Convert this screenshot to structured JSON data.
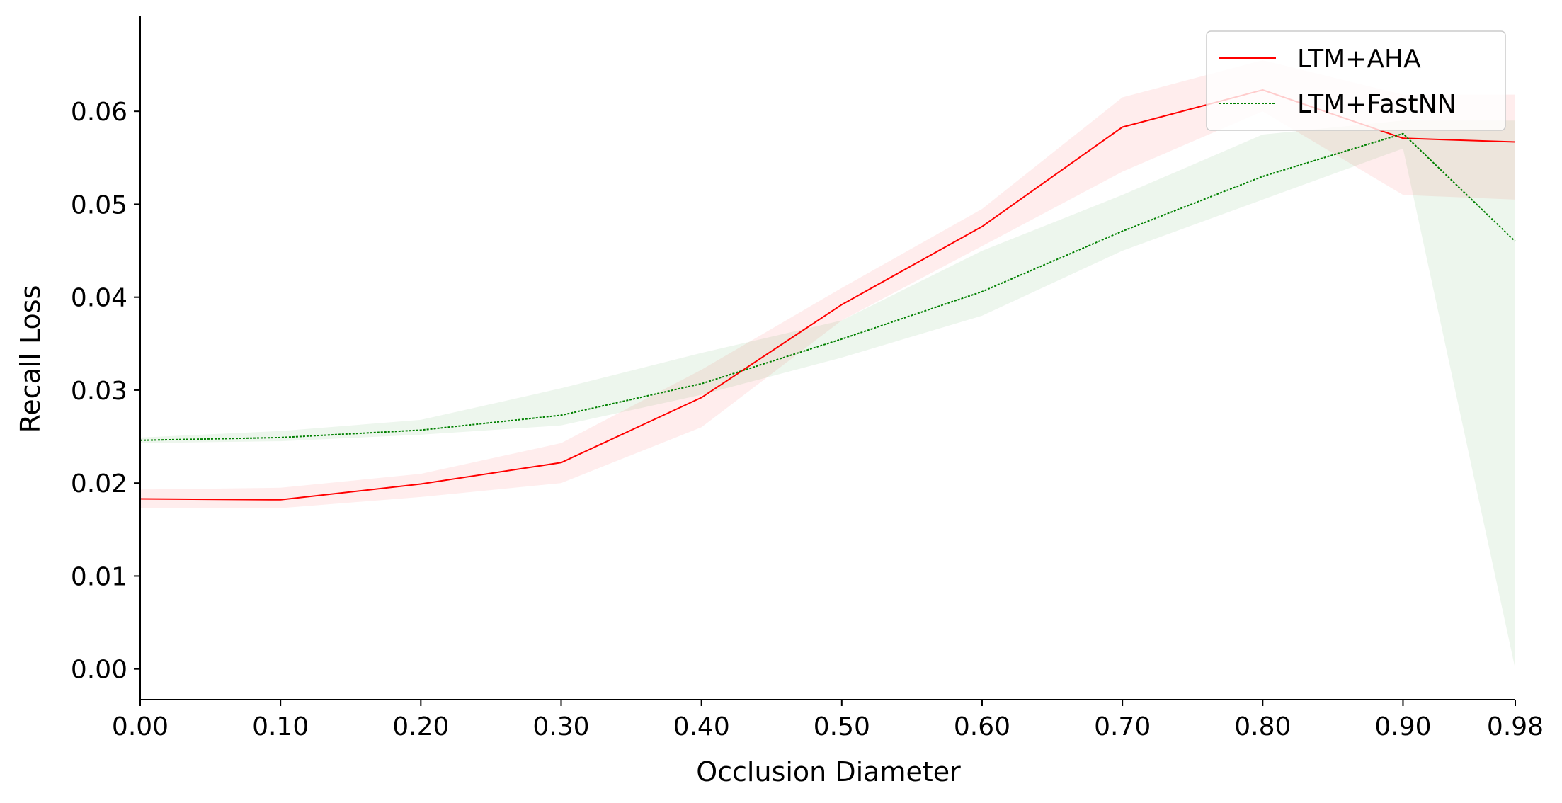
{
  "chart_data": {
    "type": "line",
    "title": "",
    "xlabel": "Occlusion Diameter",
    "ylabel": "Recall Loss",
    "x": [
      0.0,
      0.1,
      0.2,
      0.3,
      0.4,
      0.5,
      0.6,
      0.7,
      0.8,
      0.9,
      0.98
    ],
    "x_tick_labels": [
      "0.00",
      "0.10",
      "0.20",
      "0.30",
      "0.40",
      "0.50",
      "0.60",
      "0.70",
      "0.80",
      "0.90",
      "0.98"
    ],
    "y_ticks": [
      0.0,
      0.01,
      0.02,
      0.03,
      0.04,
      0.05,
      0.06
    ],
    "y_tick_labels": [
      "0.00",
      "0.01",
      "0.02",
      "0.03",
      "0.04",
      "0.05",
      "0.06"
    ],
    "xlim": [
      0.0,
      0.98
    ],
    "ylim": [
      -0.0033,
      0.0703
    ],
    "grid": false,
    "legend_position": "top-right",
    "series": [
      {
        "name": "LTM+AHA",
        "color": "#ff0000",
        "line_style": "solid",
        "values": [
          0.0183,
          0.0182,
          0.0199,
          0.0222,
          0.0292,
          0.0392,
          0.0476,
          0.0583,
          0.0623,
          0.0571,
          0.0567
        ],
        "lower": [
          0.0173,
          0.0173,
          0.0185,
          0.02,
          0.026,
          0.0375,
          0.0455,
          0.0535,
          0.06,
          0.051,
          0.0505
        ],
        "upper": [
          0.0193,
          0.0195,
          0.021,
          0.0243,
          0.0322,
          0.041,
          0.0495,
          0.0615,
          0.0655,
          0.0618,
          0.0618
        ]
      },
      {
        "name": "LTM+FastNN",
        "color": "#008000",
        "line_style": "dotted",
        "values": [
          0.0246,
          0.0249,
          0.0257,
          0.0273,
          0.0307,
          0.0355,
          0.0406,
          0.0471,
          0.053,
          0.0576,
          0.046
        ],
        "lower": [
          0.0243,
          0.0245,
          0.0252,
          0.0262,
          0.0295,
          0.0335,
          0.038,
          0.045,
          0.0505,
          0.056,
          0.0
        ],
        "upper": [
          0.0249,
          0.0256,
          0.0268,
          0.0302,
          0.034,
          0.0375,
          0.045,
          0.051,
          0.0575,
          0.059,
          0.059
        ]
      }
    ]
  }
}
